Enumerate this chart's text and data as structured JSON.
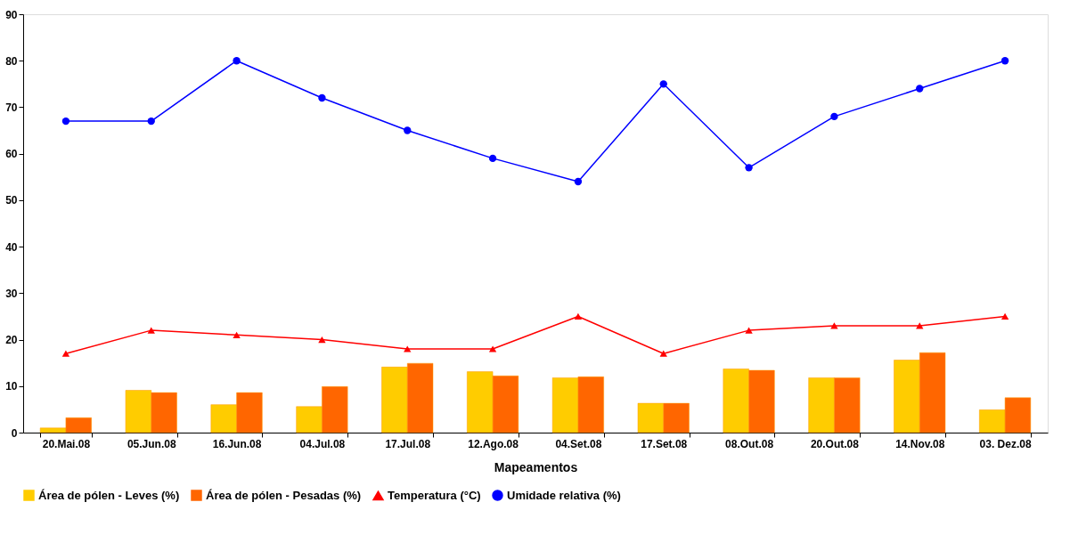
{
  "chart_data": {
    "type": "bar",
    "xlabel": "Mapeamentos",
    "categories": [
      "20.Mai.08",
      "05.Jun.08",
      "16.Jun.08",
      "04.Jul.08",
      "17.Jul.08",
      "12.Ago.08",
      "04.Set.08",
      "17.Set.08",
      "08.Out.08",
      "20.Out.08",
      "14.Nov.08",
      "03. Dez.08"
    ],
    "series": [
      {
        "name": "Área de pólen - Leves (%)",
        "color": "#ffcc00",
        "values": [
          1.0,
          9.1,
          6.0,
          5.6,
          14.1,
          13.1,
          11.8,
          6.3,
          13.7,
          11.8,
          15.6,
          4.9
        ]
      },
      {
        "name": "Área de pólen - Pesadas (%)",
        "color": "#ff6600",
        "values": [
          3.2,
          8.6,
          8.6,
          9.9,
          14.9,
          12.2,
          12.0,
          6.3,
          13.4,
          11.8,
          17.2,
          7.5
        ]
      },
      {
        "name": "Temperatura (°C)",
        "type": "line",
        "color": "#ff0000",
        "marker": "triangle",
        "values": [
          17,
          22,
          21,
          20,
          18,
          18,
          25,
          17,
          22,
          23,
          23,
          25
        ]
      },
      {
        "name": "Umidade relativa (%)",
        "type": "line",
        "color": "#0000ff",
        "marker": "circle",
        "values": [
          67,
          67,
          80,
          72,
          65,
          59,
          54,
          75,
          57,
          68,
          74,
          80
        ]
      }
    ],
    "ylim": [
      0,
      90
    ],
    "yticks": [
      0,
      10,
      20,
      30,
      40,
      50,
      60,
      70,
      80,
      90
    ],
    "grid": false,
    "legend": "bottom"
  }
}
